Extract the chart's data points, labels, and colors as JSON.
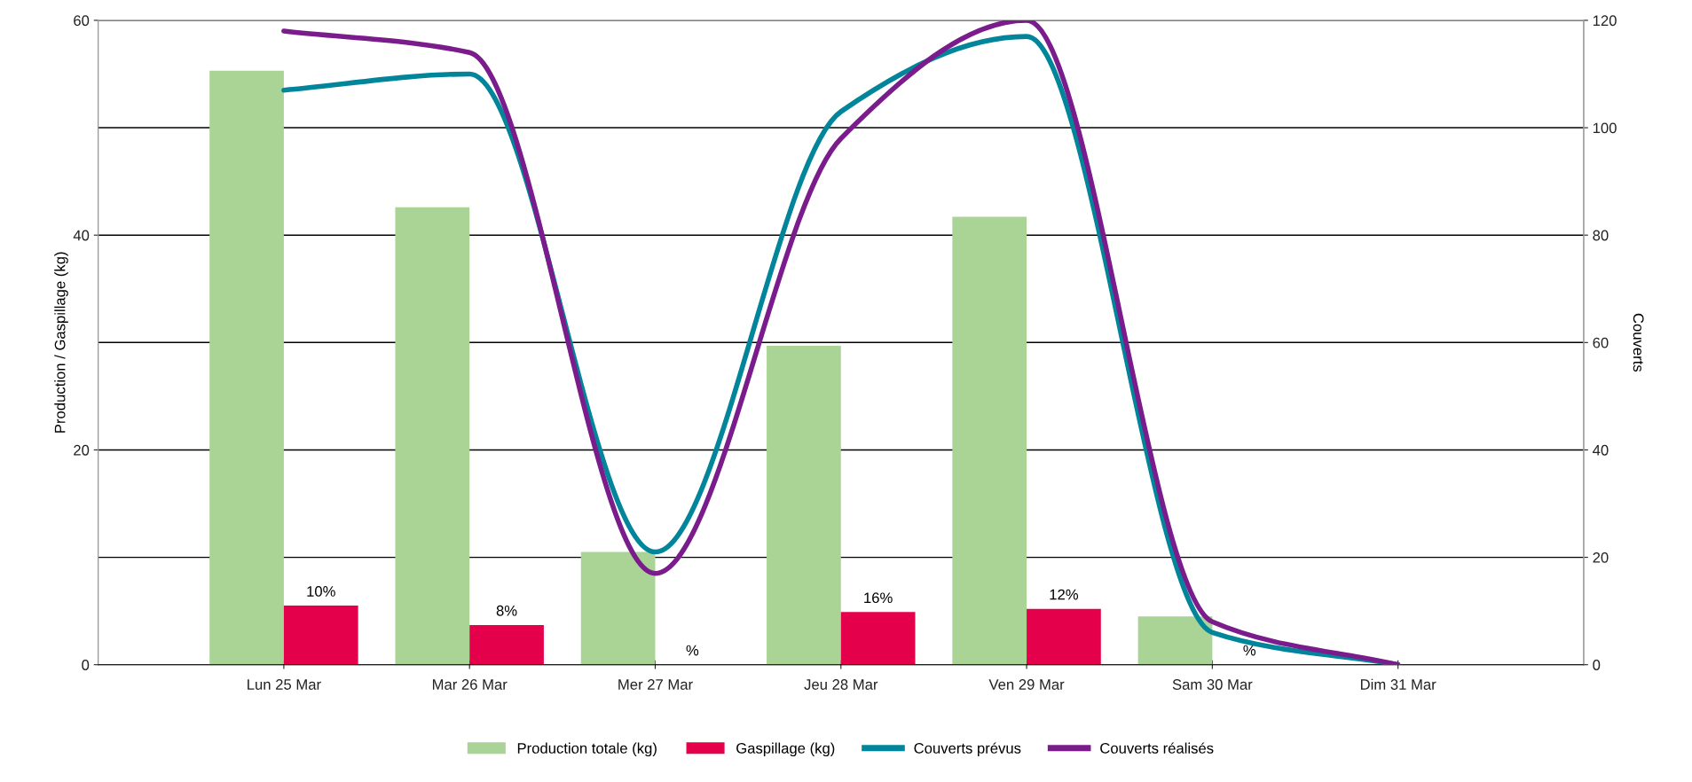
{
  "chart_data": {
    "type": "bar",
    "categories": [
      "Lun 25 Mar",
      "Mar 26 Mar",
      "Mer 27 Mar",
      "Jeu 28 Mar",
      "Ven 29 Mar",
      "Sam 30 Mar",
      "Dim 31 Mar"
    ],
    "series": [
      {
        "name": "Production totale (kg)",
        "color": "#aad396",
        "values": [
          55.3,
          42.6,
          10.5,
          29.7,
          41.7,
          4.5,
          null
        ]
      },
      {
        "name": "Gaspillage (kg)",
        "color": "#e5004c",
        "values": [
          5.5,
          3.7,
          null,
          4.9,
          5.2,
          null,
          null
        ]
      },
      {
        "name": "Couverts prévus",
        "type": "line",
        "axis": "y2",
        "color": "#00859a",
        "values": [
          107,
          110,
          21,
          103,
          117,
          6,
          0
        ]
      },
      {
        "name": "Couverts réalisés",
        "type": "line",
        "axis": "y2",
        "color": "#7b1c8c",
        "values": [
          118,
          114,
          17,
          98,
          120,
          8,
          0
        ]
      }
    ],
    "ylabel": "Production / Gaspillage (kg)",
    "y2label": "Couverts",
    "ylim": [
      0,
      60
    ],
    "yticks": [
      0,
      20,
      40,
      60
    ],
    "y2lim": [
      0,
      120
    ],
    "y2ticks": [
      0,
      20,
      40,
      60,
      80,
      100,
      120
    ],
    "annotations": [
      {
        "text": "10%",
        "x": "Lun 25 Mar",
        "y": 5.5
      },
      {
        "text": "8%",
        "x": "Mar 26 Mar",
        "y": 3.7
      },
      {
        "text": "%",
        "x": "Mer 27 Mar",
        "y": 0
      },
      {
        "text": "16%",
        "x": "Jeu 28 Mar",
        "y": 4.9
      },
      {
        "text": "12%",
        "x": "Ven 29 Mar",
        "y": 5.2
      },
      {
        "text": "%",
        "x": "Sam 30 Mar",
        "y": 0
      }
    ],
    "grid": "y",
    "legend": "bottom"
  }
}
